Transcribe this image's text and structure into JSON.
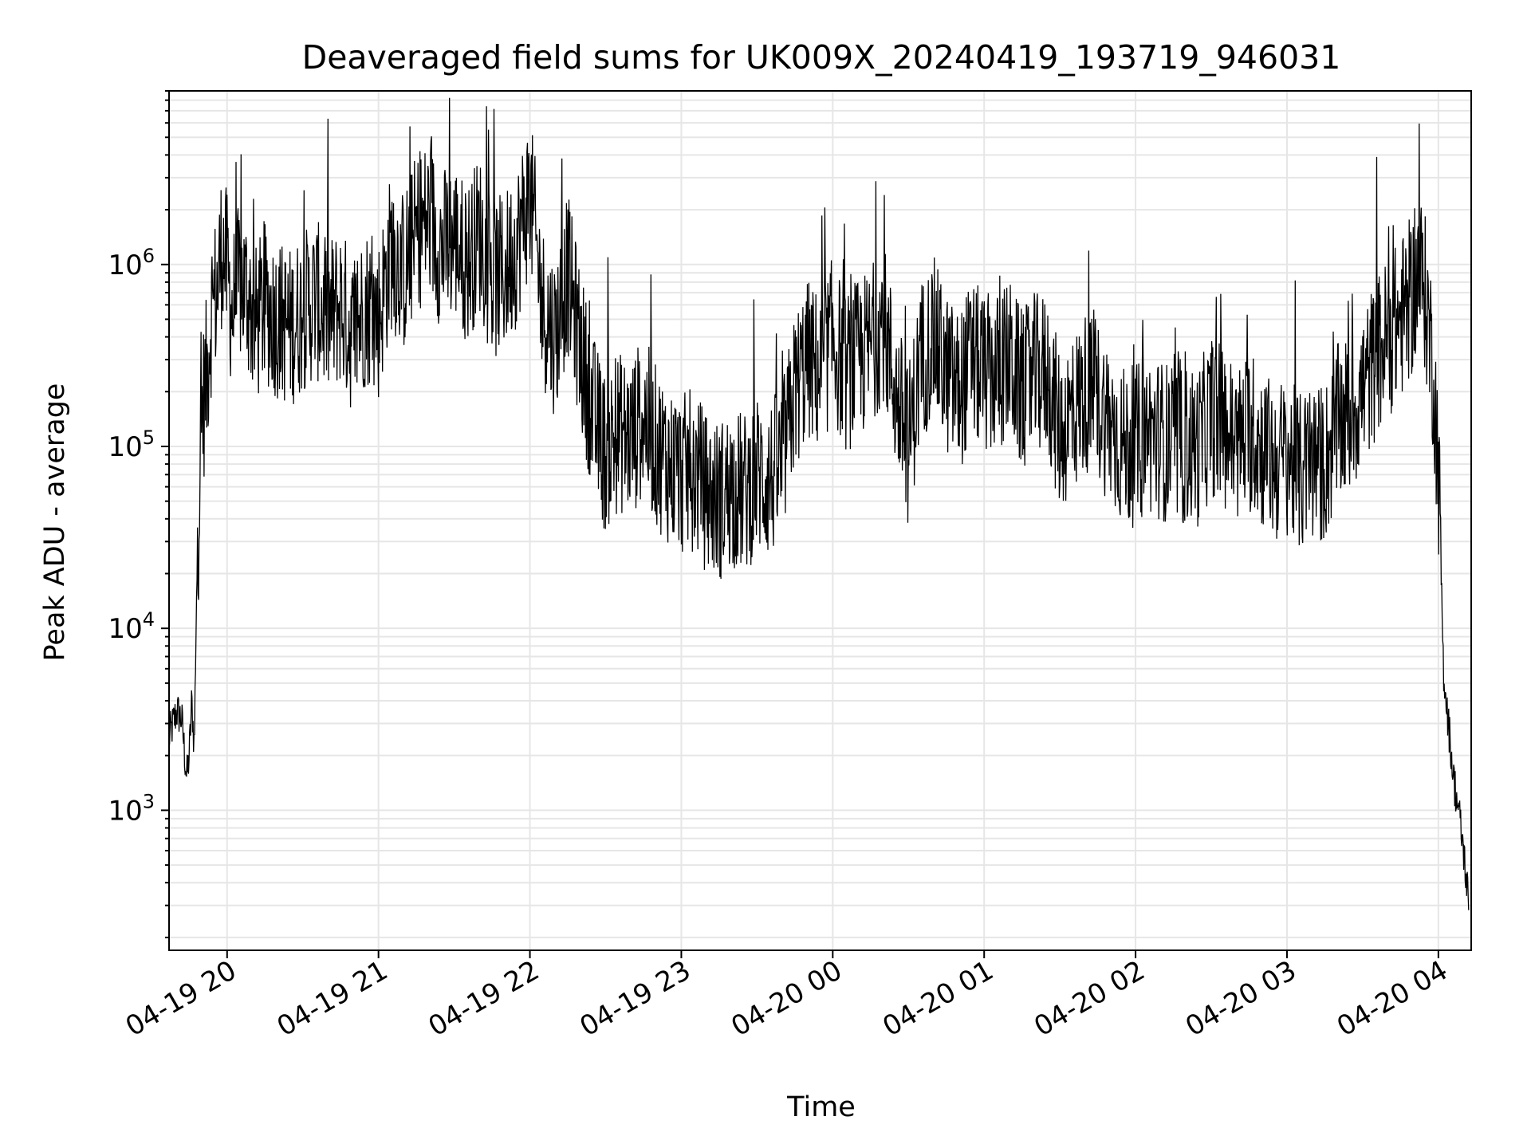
{
  "chart_data": {
    "type": "line",
    "title": "Deaveraged field sums for UK009X_20240419_193719_946031",
    "xlabel": "Time",
    "ylabel": "Peak ADU - average",
    "yscale": "log",
    "grid": true,
    "line_color": "#000000",
    "grid_color": "#e6e6e6",
    "xlim": [
      "2024-04-19 19:37",
      "2024-04-20 04:13"
    ],
    "ylim": [
      170,
      9000000
    ],
    "x_ticks": [
      {
        "value": "2024-04-19 20:00",
        "label": "04-19 20"
      },
      {
        "value": "2024-04-19 21:00",
        "label": "04-19 21"
      },
      {
        "value": "2024-04-19 22:00",
        "label": "04-19 22"
      },
      {
        "value": "2024-04-19 23:00",
        "label": "04-19 23"
      },
      {
        "value": "2024-04-20 00:00",
        "label": "04-20 00"
      },
      {
        "value": "2024-04-20 01:00",
        "label": "04-20 01"
      },
      {
        "value": "2024-04-20 02:00",
        "label": "04-20 02"
      },
      {
        "value": "2024-04-20 03:00",
        "label": "04-20 03"
      },
      {
        "value": "2024-04-20 04:00",
        "label": "04-20 04"
      }
    ],
    "y_ticks": [
      {
        "value": 1000,
        "base": "10",
        "exp": "3"
      },
      {
        "value": 10000,
        "base": "10",
        "exp": "4"
      },
      {
        "value": 100000,
        "base": "10",
        "exp": "5"
      },
      {
        "value": 1000000,
        "base": "10",
        "exp": "6"
      }
    ],
    "series": [
      {
        "x": [
          "2024-04-19 19:37",
          "2024-04-19 19:40",
          "2024-04-19 19:42",
          "2024-04-19 19:44",
          "2024-04-19 19:45",
          "2024-04-19 19:46",
          "2024-04-19 19:47",
          "2024-04-19 19:48",
          "2024-04-19 19:50",
          "2024-04-19 19:52",
          "2024-04-19 19:54",
          "2024-04-19 19:56",
          "2024-04-19 19:58",
          "2024-04-19 20:00",
          "2024-04-19 20:02",
          "2024-04-19 20:05",
          "2024-04-19 20:08",
          "2024-04-19 20:11",
          "2024-04-19 20:15",
          "2024-04-19 20:20",
          "2024-04-19 20:25",
          "2024-04-19 20:30",
          "2024-04-19 20:35",
          "2024-04-19 20:40",
          "2024-04-19 20:45",
          "2024-04-19 20:50",
          "2024-04-19 20:55",
          "2024-04-19 21:00",
          "2024-04-19 21:05",
          "2024-04-19 21:10",
          "2024-04-19 21:15",
          "2024-04-19 21:20",
          "2024-04-19 21:25",
          "2024-04-19 21:30",
          "2024-04-19 21:35",
          "2024-04-19 21:40",
          "2024-04-19 21:45",
          "2024-04-19 21:50",
          "2024-04-19 21:55",
          "2024-04-19 22:00",
          "2024-04-19 22:05",
          "2024-04-19 22:10",
          "2024-04-19 22:15",
          "2024-04-19 22:20",
          "2024-04-19 22:25",
          "2024-04-19 22:30",
          "2024-04-19 22:35",
          "2024-04-19 22:40",
          "2024-04-19 22:45",
          "2024-04-19 22:50",
          "2024-04-19 22:55",
          "2024-04-19 23:00",
          "2024-04-19 23:05",
          "2024-04-19 23:10",
          "2024-04-19 23:15",
          "2024-04-19 23:20",
          "2024-04-19 23:25",
          "2024-04-19 23:30",
          "2024-04-19 23:35",
          "2024-04-19 23:40",
          "2024-04-19 23:45",
          "2024-04-19 23:50",
          "2024-04-19 23:55",
          "2024-04-20 00:00",
          "2024-04-20 00:05",
          "2024-04-20 00:10",
          "2024-04-20 00:15",
          "2024-04-20 00:20",
          "2024-04-20 00:25",
          "2024-04-20 00:30",
          "2024-04-20 00:35",
          "2024-04-20 00:40",
          "2024-04-20 00:45",
          "2024-04-20 00:50",
          "2024-04-20 00:55",
          "2024-04-20 01:00",
          "2024-04-20 01:05",
          "2024-04-20 01:10",
          "2024-04-20 01:15",
          "2024-04-20 01:20",
          "2024-04-20 01:25",
          "2024-04-20 01:30",
          "2024-04-20 01:35",
          "2024-04-20 01:40",
          "2024-04-20 01:45",
          "2024-04-20 01:50",
          "2024-04-20 01:55",
          "2024-04-20 02:00",
          "2024-04-20 02:05",
          "2024-04-20 02:10",
          "2024-04-20 02:15",
          "2024-04-20 02:20",
          "2024-04-20 02:25",
          "2024-04-20 02:30",
          "2024-04-20 02:35",
          "2024-04-20 02:40",
          "2024-04-20 02:45",
          "2024-04-20 02:50",
          "2024-04-20 02:55",
          "2024-04-20 03:00",
          "2024-04-20 03:05",
          "2024-04-20 03:10",
          "2024-04-20 03:15",
          "2024-04-20 03:20",
          "2024-04-20 03:25",
          "2024-04-20 03:30",
          "2024-04-20 03:35",
          "2024-04-20 03:40",
          "2024-04-20 03:45",
          "2024-04-20 03:50",
          "2024-04-20 03:52",
          "2024-04-20 03:54",
          "2024-04-20 03:56",
          "2024-04-20 03:58",
          "2024-04-20 04:00",
          "2024-04-20 04:02",
          "2024-04-20 04:04",
          "2024-04-20 04:06",
          "2024-04-20 04:08",
          "2024-04-20 04:10",
          "2024-04-20 04:12"
        ],
        "y": [
          2500,
          3500,
          3200,
          1500,
          2000,
          4000,
          2200,
          20000,
          150000,
          250000,
          600000,
          700000,
          1300000,
          900000,
          550000,
          800000,
          700000,
          450000,
          600000,
          500000,
          450000,
          550000,
          650000,
          500000,
          600000,
          400000,
          600000,
          500000,
          1200000,
          900000,
          1500000,
          1800000,
          1200000,
          1400000,
          1000000,
          1500000,
          800000,
          900000,
          1300000,
          2500000,
          600000,
          400000,
          900000,
          350000,
          150000,
          90000,
          120000,
          110000,
          150000,
          100000,
          80000,
          70000,
          75000,
          55000,
          50000,
          60000,
          55000,
          70000,
          65000,
          80000,
          200000,
          300000,
          250000,
          400000,
          250000,
          300000,
          350000,
          500000,
          200000,
          100000,
          300000,
          400000,
          250000,
          200000,
          300000,
          250000,
          250000,
          300000,
          200000,
          250000,
          250000,
          120000,
          150000,
          200000,
          180000,
          130000,
          100000,
          100000,
          120000,
          110000,
          100000,
          100000,
          100000,
          150000,
          130000,
          100000,
          120000,
          100000,
          80000,
          90000,
          70000,
          80000,
          80000,
          130000,
          150000,
          200000,
          300000,
          400000,
          500000,
          700000,
          900000,
          800000,
          500000,
          250000,
          80000,
          6000,
          3000,
          1500,
          1000,
          600,
          300
        ]
      }
    ]
  }
}
